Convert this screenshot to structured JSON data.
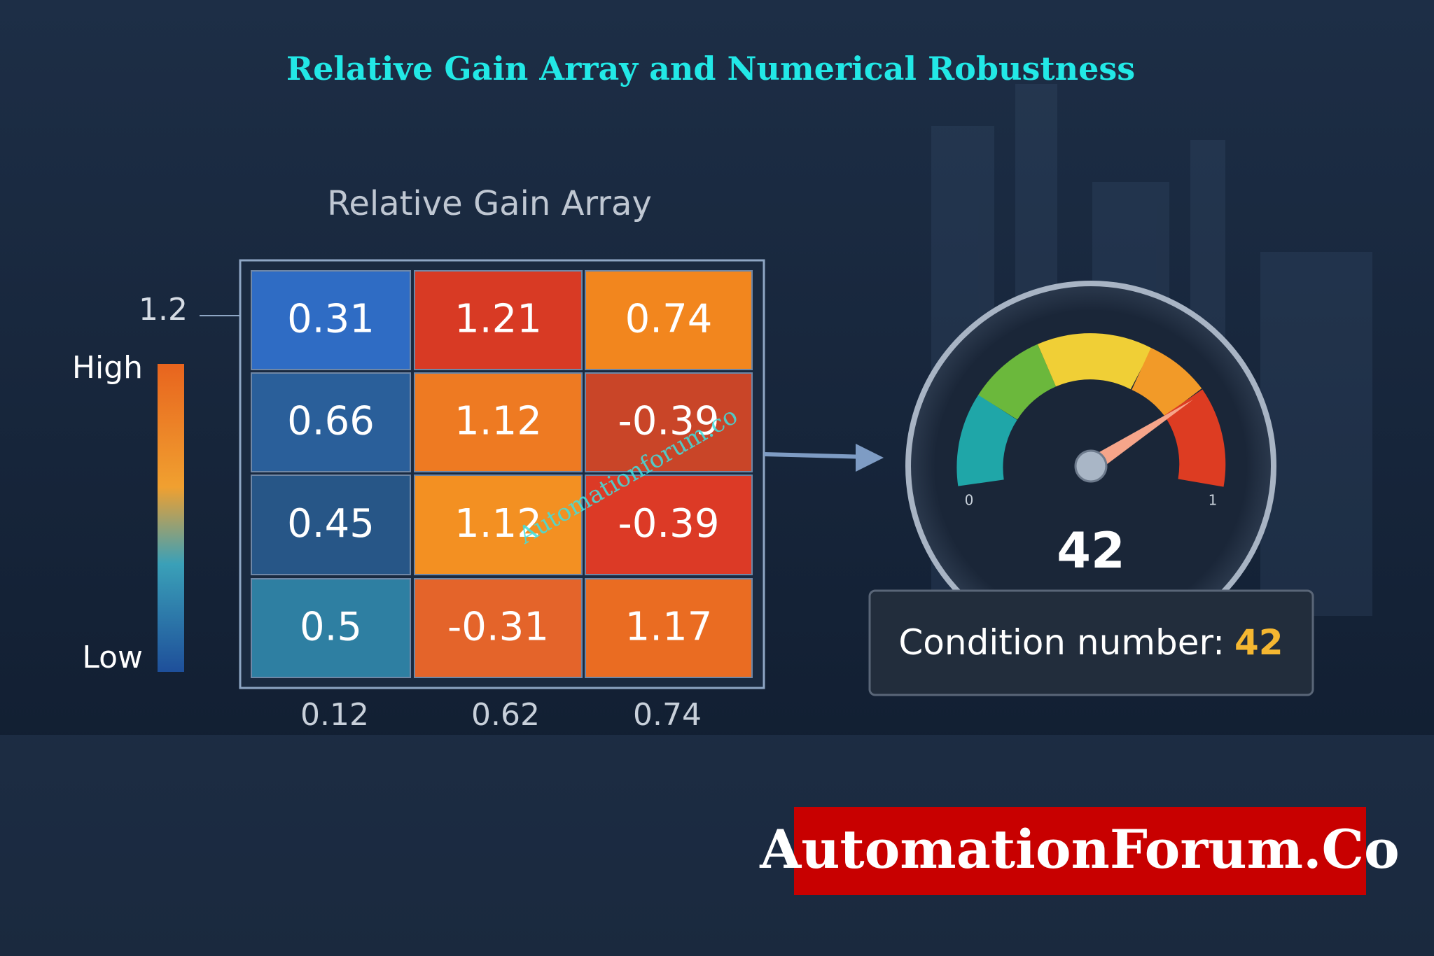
{
  "header": {
    "title": "Relative Gain Array and Numerical Robustness"
  },
  "heatmap": {
    "title": "Relative Gain Array",
    "rows": [
      [
        "0.31",
        "1.21",
        "0.74"
      ],
      [
        "0.66",
        "1.12",
        "-0.39"
      ],
      [
        "0.45",
        "1.12",
        "-0.39"
      ],
      [
        "0.5",
        "-0.31",
        "1.17"
      ]
    ],
    "colors": [
      [
        "#2f6cc4",
        "#d83a24",
        "#f2861e"
      ],
      [
        "#2a5f9a",
        "#ee7a22",
        "#c94528"
      ],
      [
        "#275687",
        "#f39022",
        "#dc3a26"
      ],
      [
        "#2e7fa2",
        "#e4642a",
        "#ea6c22"
      ]
    ],
    "column_labels": [
      "0.12",
      "0.62",
      "0.74"
    ],
    "scale": {
      "tick": "1.2",
      "high": "High",
      "low": "Low"
    }
  },
  "gauge": {
    "min_label": "0",
    "max_label": "1",
    "value": "42"
  },
  "condition": {
    "label": "Condition number:",
    "value": "42"
  },
  "watermark": "Automationforum.co",
  "brand": "AutomationForum.Co"
}
